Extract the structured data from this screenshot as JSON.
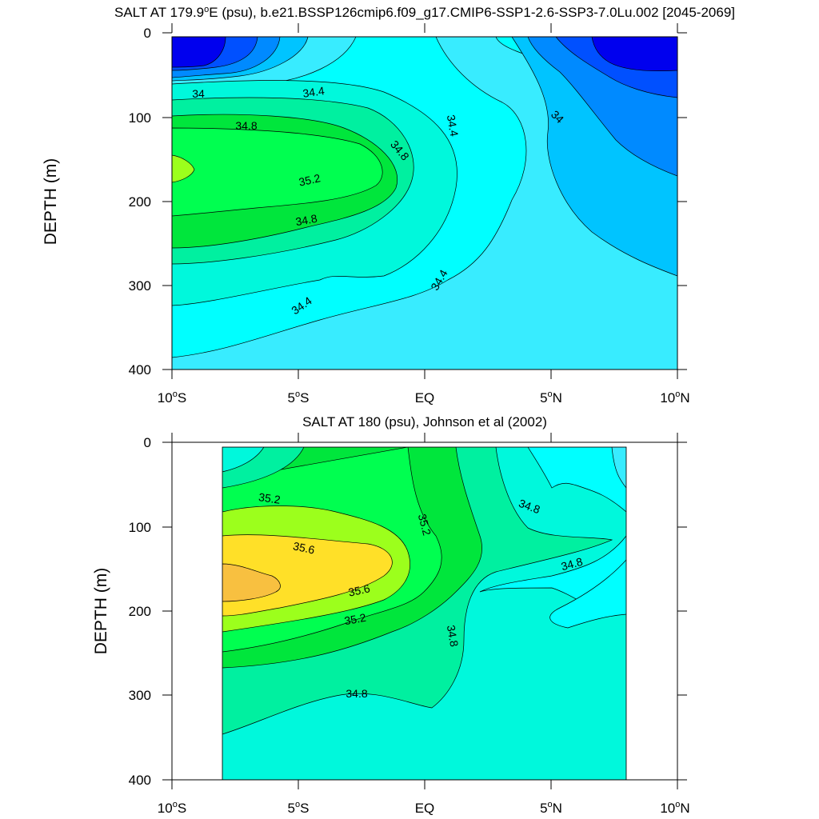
{
  "chart_data": [
    {
      "type": "contour",
      "title": "SALT AT 179.9°E (psu), b.e21.BSSP126cmip6.f09_g17.CMIP6-SSP1-2.6-SSP3-7.0Lu.002 [2045-2069]",
      "title_parts": {
        "pre": "SALT AT 179.9",
        "sup": "o",
        "post": "E (psu), b.e21.BSSP126cmip6.f09_g17.CMIP6-SSP1-2.6-SSP3-7.0Lu.002 [2045-2069]"
      },
      "xlabel": "",
      "ylabel": "DEPTH (m)",
      "xlim": [
        -10,
        10
      ],
      "ylim": [
        400,
        0
      ],
      "x_ticks": [
        {
          "value": -10,
          "num": "10",
          "sup": "o",
          "hem": "S"
        },
        {
          "value": -5,
          "num": "5",
          "sup": "o",
          "hem": "S"
        },
        {
          "value": 0,
          "num": "EQ",
          "sup": "",
          "hem": ""
        },
        {
          "value": 5,
          "num": "5",
          "sup": "o",
          "hem": "N"
        },
        {
          "value": 10,
          "num": "10",
          "sup": "o",
          "hem": "N"
        }
      ],
      "y_ticks": [
        {
          "value": 0,
          "label": "0"
        },
        {
          "value": 100,
          "label": "100"
        },
        {
          "value": 200,
          "label": "200"
        },
        {
          "value": 300,
          "label": "300"
        },
        {
          "value": 400,
          "label": "400"
        }
      ],
      "data_x_range": [
        -10,
        10
      ],
      "data_y_range": [
        5,
        390
      ],
      "contour_interval": 0.2,
      "contour_labels": [
        {
          "text": "34",
          "x": -9.2,
          "y": 67
        },
        {
          "text": "34.4",
          "x": -4.3,
          "y": 65
        },
        {
          "text": "34.8",
          "x": -7.0,
          "y": 110
        },
        {
          "text": "35.2",
          "x": -4.6,
          "y": 172
        },
        {
          "text": "34.8",
          "x": -1.0,
          "y": 136
        },
        {
          "text": "34.4",
          "x": 1.1,
          "y": 104
        },
        {
          "text": "34",
          "x": 5.2,
          "y": 94
        },
        {
          "text": "34.8",
          "x": -4.7,
          "y": 215
        },
        {
          "text": "34.4",
          "x": 0.4,
          "y": 297
        },
        {
          "text": "34.4",
          "x": -5.2,
          "y": 318
        }
      ]
    },
    {
      "type": "contour",
      "title": "SALT AT 180 (psu), Johnson et al (2002)",
      "title_parts": {
        "pre": "SALT AT 180 (psu), Johnson et al (2002)",
        "sup": "",
        "post": ""
      },
      "xlabel": "",
      "ylabel": "DEPTH (m)",
      "xlim": [
        -10,
        10
      ],
      "ylim": [
        400,
        0
      ],
      "x_ticks": [
        {
          "value": -10,
          "num": "10",
          "sup": "o",
          "hem": "S"
        },
        {
          "value": -5,
          "num": "5",
          "sup": "o",
          "hem": "S"
        },
        {
          "value": 0,
          "num": "EQ",
          "sup": "",
          "hem": ""
        },
        {
          "value": 5,
          "num": "5",
          "sup": "o",
          "hem": "N"
        },
        {
          "value": 10,
          "num": "10",
          "sup": "o",
          "hem": "N"
        }
      ],
      "y_ticks": [
        {
          "value": 0,
          "label": "0"
        },
        {
          "value": 100,
          "label": "100"
        },
        {
          "value": 200,
          "label": "200"
        },
        {
          "value": 300,
          "label": "300"
        },
        {
          "value": 400,
          "label": "400"
        }
      ],
      "data_x_range": [
        -8,
        8
      ],
      "data_y_range": [
        5,
        400
      ],
      "contour_interval": 0.2,
      "contour_labels": [
        {
          "text": "35.2",
          "x": -6.2,
          "y": 63
        },
        {
          "text": "35.2",
          "x": 0.0,
          "y": 95
        },
        {
          "text": "34.8",
          "x": 4.2,
          "y": 72
        },
        {
          "text": "35.6",
          "x": -4.9,
          "y": 122
        },
        {
          "text": "34.8",
          "x": 5.6,
          "y": 143
        },
        {
          "text": "35.6",
          "x": -2.6,
          "y": 172
        },
        {
          "text": "35.2",
          "x": -2.8,
          "y": 208
        },
        {
          "text": "34.8",
          "x": 1.1,
          "y": 225
        },
        {
          "text": "34.8",
          "x": -2.7,
          "y": 296
        }
      ]
    }
  ],
  "colors": {
    "s_lt_33_6": "#0000ee",
    "s_33_6_33_8": "#0050ff",
    "s_33_8_34_0": "#008aff",
    "s_34_0_34_2": "#00c4ff",
    "s_34_2_34_4": "#38ecff",
    "s_34_4_34_6": "#00ffff",
    "s_34_6_34_8": "#00f8dc",
    "s_34_8_35_0": "#00f0a0",
    "s_35_0_35_2": "#00e63c",
    "s_35_2_35_4": "#00ff50",
    "s_35_4_35_6": "#9cff1c",
    "s_35_6_35_8": "#ffe028",
    "s_gt_35_8": "#f8c040"
  }
}
